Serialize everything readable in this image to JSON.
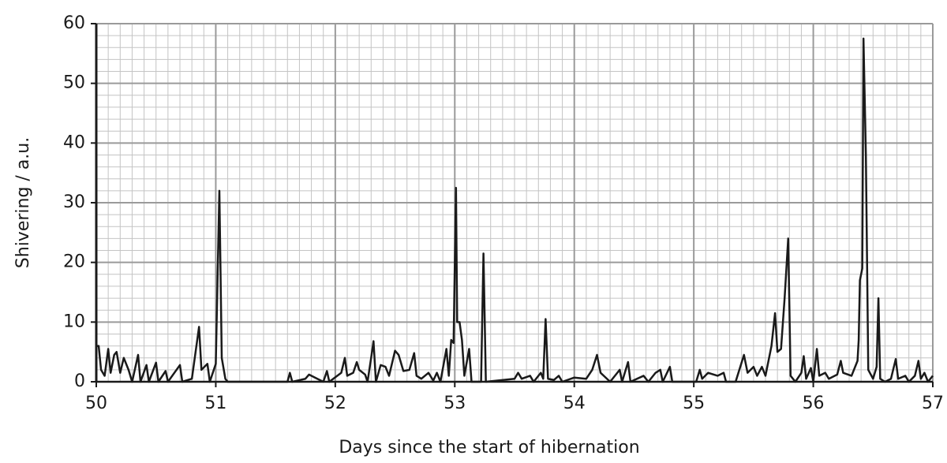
{
  "chart_data": {
    "type": "line",
    "xlabel": "Days since the start of hibernation",
    "ylabel": "Shivering / a.u.",
    "x": [
      50.0,
      50.02,
      50.04,
      50.07,
      50.1,
      50.12,
      50.15,
      50.17,
      50.2,
      50.23,
      50.27,
      50.3,
      50.35,
      50.37,
      50.42,
      50.44,
      50.5,
      50.52,
      50.58,
      50.6,
      50.7,
      50.72,
      50.8,
      50.86,
      50.88,
      50.93,
      50.95,
      51.0,
      51.03,
      51.05,
      51.08,
      51.1,
      51.6,
      51.62,
      51.64,
      51.75,
      51.78,
      51.85,
      51.9,
      51.93,
      51.95,
      52.05,
      52.08,
      52.1,
      52.15,
      52.18,
      52.2,
      52.25,
      52.27,
      52.3,
      52.32,
      52.34,
      52.38,
      52.42,
      52.45,
      52.5,
      52.53,
      52.57,
      52.62,
      52.66,
      52.68,
      52.72,
      52.78,
      52.82,
      52.85,
      52.88,
      52.93,
      52.95,
      52.97,
      52.99,
      53.01,
      53.02,
      53.04,
      53.06,
      53.08,
      53.12,
      53.14,
      53.22,
      53.24,
      53.26,
      53.5,
      53.53,
      53.56,
      53.63,
      53.66,
      53.72,
      53.74,
      53.76,
      53.78,
      53.83,
      53.87,
      53.9,
      54.0,
      54.1,
      54.15,
      54.19,
      54.22,
      54.3,
      54.38,
      54.4,
      54.45,
      54.47,
      54.58,
      54.62,
      54.68,
      54.72,
      54.74,
      54.8,
      54.82,
      55.02,
      55.05,
      55.07,
      55.12,
      55.2,
      55.25,
      55.27,
      55.35,
      55.42,
      55.45,
      55.5,
      55.53,
      55.57,
      55.6,
      55.65,
      55.68,
      55.7,
      55.73,
      55.76,
      55.79,
      55.81,
      55.85,
      55.9,
      55.92,
      55.94,
      55.98,
      56.0,
      56.03,
      56.05,
      56.1,
      56.13,
      56.2,
      56.23,
      56.25,
      56.32,
      56.37,
      56.38,
      56.39,
      56.41,
      56.42,
      56.44,
      56.46,
      56.5,
      56.53,
      56.545,
      56.56,
      56.6,
      56.65,
      56.69,
      56.71,
      56.77,
      56.8,
      56.85,
      56.88,
      56.9,
      56.93,
      56.96,
      57.0
    ],
    "values": [
      6,
      6,
      2,
      1,
      5.5,
      1.5,
      4.5,
      5,
      1.5,
      4,
      2,
      0,
      4.5,
      0,
      2.8,
      0,
      3.2,
      0,
      1.8,
      0,
      2.8,
      0,
      0.5,
      9.2,
      2,
      3,
      0,
      3,
      32,
      4,
      0.5,
      0,
      0,
      1.5,
      0,
      0.5,
      1.2,
      0.5,
      0,
      1.8,
      0,
      1.5,
      4,
      1,
      1.5,
      3.3,
      2,
      1.2,
      0,
      4,
      6.8,
      0,
      2.8,
      2.5,
      1,
      5.2,
      4.5,
      1.8,
      2,
      4.8,
      1,
      0.5,
      1.5,
      0.2,
      1.5,
      0,
      5.5,
      1,
      7,
      6.5,
      32.5,
      10,
      10,
      7,
      1,
      5.5,
      0,
      0,
      21.5,
      0,
      0.5,
      1.5,
      0.5,
      1,
      0,
      1.5,
      0.5,
      10.5,
      0.5,
      0.3,
      1,
      0,
      0.7,
      0.5,
      2,
      4.5,
      1.5,
      0,
      2,
      0,
      3.3,
      0,
      1,
      0,
      1.5,
      2,
      0,
      2.5,
      0,
      0,
      2,
      0.5,
      1.5,
      1,
      1.5,
      0,
      0,
      4.5,
      1.5,
      2.5,
      1,
      2.5,
      1,
      6,
      11.5,
      5,
      5.5,
      14,
      24,
      1,
      0,
      1.5,
      4.3,
      0.5,
      2.3,
      0,
      5.5,
      1,
      1.5,
      0.5,
      1.2,
      3.5,
      1.5,
      1,
      3.5,
      7,
      17,
      19,
      57.5,
      38,
      2,
      0.5,
      2.5,
      14,
      0.5,
      0,
      0.5,
      3.8,
      0.5,
      1,
      0,
      1,
      3.5,
      0.5,
      1.5,
      0,
      1
    ],
    "color": "#1a1a1a",
    "xlim": [
      50,
      57
    ],
    "xticks": [
      50,
      51,
      52,
      53,
      54,
      55,
      56,
      57
    ],
    "ylim": [
      0,
      60
    ],
    "yticks": [
      0,
      10,
      20,
      30,
      40,
      50,
      60
    ],
    "grid": true
  }
}
